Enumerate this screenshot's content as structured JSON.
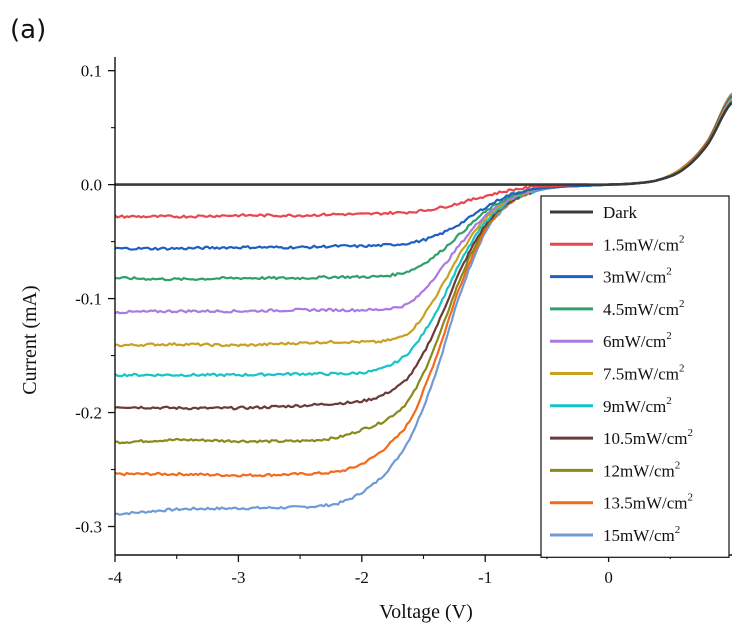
{
  "panel_label": "(a)",
  "chart_data": {
    "type": "line",
    "xlabel": "Voltage (V)",
    "ylabel": "Current (mA)",
    "xlim": [
      -4,
      1.0
    ],
    "ylim": [
      -0.325,
      0.112
    ],
    "x_ticks": [
      -4,
      -3,
      -2,
      -1,
      0
    ],
    "x_tick_labels": [
      "-4",
      "-3",
      "-2",
      "-1",
      "0"
    ],
    "y_ticks": [
      0.1,
      0.0,
      -0.1,
      -0.2,
      -0.3
    ],
    "y_tick_labels": [
      "0.1",
      "0.0",
      "-0.1",
      "-0.2",
      "-0.3"
    ],
    "grid": false,
    "legend_position": "bottom-right",
    "x": [
      -4.0,
      -3.5,
      -3.0,
      -2.5,
      -2.2,
      -2.0,
      -1.8,
      -1.6,
      -1.4,
      -1.2,
      -1.0,
      -0.8,
      -0.6,
      -0.4,
      -0.2,
      0.0,
      0.2,
      0.4,
      0.6,
      0.8,
      1.0
    ],
    "series": [
      {
        "name": "Dark",
        "unit_sup": "",
        "color": "#3a3a3a",
        "values": [
          0,
          0,
          0,
          0,
          0,
          0,
          0,
          0,
          0,
          0,
          0,
          0,
          0,
          0,
          0,
          0,
          0.001,
          0.004,
          0.013,
          0.035,
          0.072
        ]
      },
      {
        "name": "1.5mW/cm",
        "unit_sup": "2",
        "color": "#e8474f",
        "values": [
          -0.028,
          -0.028,
          -0.027,
          -0.027,
          -0.026,
          -0.026,
          -0.025,
          -0.024,
          -0.021,
          -0.016,
          -0.01,
          -0.005,
          -0.002,
          -0.001,
          0.0,
          0.0,
          0.001,
          0.004,
          0.013,
          0.035,
          0.072
        ]
      },
      {
        "name": "3mW/cm",
        "unit_sup": "2",
        "color": "#1f5fbf",
        "values": [
          -0.056,
          -0.056,
          -0.055,
          -0.055,
          -0.054,
          -0.054,
          -0.053,
          -0.051,
          -0.045,
          -0.034,
          -0.02,
          -0.009,
          -0.004,
          -0.002,
          -0.001,
          0.0,
          0.001,
          0.004,
          0.013,
          0.035,
          0.072
        ]
      },
      {
        "name": "4.5mW/cm",
        "unit_sup": "2",
        "color": "#2ea06a",
        "values": [
          -0.082,
          -0.083,
          -0.082,
          -0.082,
          -0.081,
          -0.081,
          -0.08,
          -0.075,
          -0.062,
          -0.043,
          -0.024,
          -0.011,
          -0.004,
          -0.002,
          -0.001,
          0.0,
          0.001,
          0.004,
          0.013,
          0.035,
          0.073
        ]
      },
      {
        "name": "6mW/cm",
        "unit_sup": "2",
        "color": "#a97be0",
        "values": [
          -0.112,
          -0.111,
          -0.111,
          -0.11,
          -0.11,
          -0.11,
          -0.109,
          -0.103,
          -0.08,
          -0.052,
          -0.027,
          -0.012,
          -0.005,
          -0.002,
          -0.001,
          0.0,
          0.001,
          0.004,
          0.013,
          0.035,
          0.074
        ]
      },
      {
        "name": "7.5mW/cm",
        "unit_sup": "2",
        "color": "#c9a020",
        "values": [
          -0.141,
          -0.14,
          -0.141,
          -0.139,
          -0.138,
          -0.138,
          -0.137,
          -0.128,
          -0.098,
          -0.06,
          -0.03,
          -0.013,
          -0.005,
          -0.002,
          -0.001,
          0.0,
          0.001,
          0.004,
          0.014,
          0.036,
          0.075
        ]
      },
      {
        "name": "9mW/cm",
        "unit_sup": "2",
        "color": "#17c3c9",
        "values": [
          -0.167,
          -0.167,
          -0.167,
          -0.166,
          -0.166,
          -0.165,
          -0.16,
          -0.145,
          -0.112,
          -0.068,
          -0.033,
          -0.014,
          -0.006,
          -0.002,
          -0.001,
          0.0,
          0.001,
          0.004,
          0.014,
          0.036,
          0.076
        ]
      },
      {
        "name": "10.5mW/cm",
        "unit_sup": "2",
        "color": "#6b3a3a",
        "values": [
          -0.195,
          -0.196,
          -0.196,
          -0.194,
          -0.192,
          -0.19,
          -0.183,
          -0.166,
          -0.126,
          -0.075,
          -0.036,
          -0.015,
          -0.006,
          -0.002,
          -0.001,
          0.0,
          0.001,
          0.004,
          0.014,
          0.037,
          0.077
        ]
      },
      {
        "name": "12mW/cm",
        "unit_sup": "2",
        "color": "#8a8a1a",
        "values": [
          -0.226,
          -0.224,
          -0.225,
          -0.225,
          -0.222,
          -0.215,
          -0.206,
          -0.186,
          -0.14,
          -0.082,
          -0.038,
          -0.016,
          -0.006,
          -0.002,
          -0.001,
          0.0,
          0.001,
          0.004,
          0.014,
          0.037,
          0.078
        ]
      },
      {
        "name": "13.5mW/cm",
        "unit_sup": "2",
        "color": "#f26a1b",
        "values": [
          -0.254,
          -0.254,
          -0.255,
          -0.254,
          -0.252,
          -0.245,
          -0.23,
          -0.205,
          -0.152,
          -0.088,
          -0.04,
          -0.016,
          -0.006,
          -0.002,
          -0.001,
          0.0,
          0.001,
          0.004,
          0.015,
          0.038,
          0.079
        ]
      },
      {
        "name": "15mW/cm",
        "unit_sup": "2",
        "color": "#6f9bd4",
        "values": [
          -0.289,
          -0.285,
          -0.284,
          -0.283,
          -0.28,
          -0.27,
          -0.252,
          -0.22,
          -0.165,
          -0.095,
          -0.042,
          -0.017,
          -0.006,
          -0.002,
          -0.001,
          0.0,
          0.001,
          0.004,
          0.015,
          0.038,
          0.08
        ]
      }
    ]
  }
}
